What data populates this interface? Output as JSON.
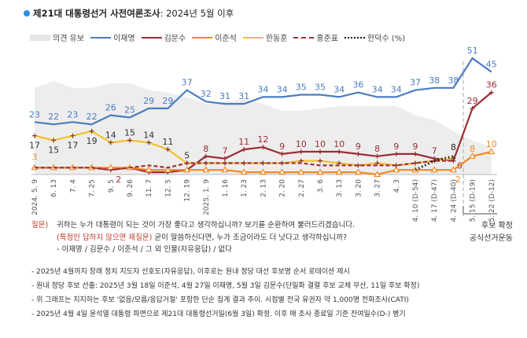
{
  "title": {
    "main": "제21대 대통령선거 사전여론조사",
    "sub": ": 2024년 5월 이후"
  },
  "legend": [
    {
      "label": "의견 유보",
      "key": "undecided"
    },
    {
      "label": "이재명",
      "key": "lee_jm"
    },
    {
      "label": "김문수",
      "key": "kim_ms"
    },
    {
      "label": "이준석",
      "key": "lee_js"
    },
    {
      "label": "한동훈",
      "key": "han_dh"
    },
    {
      "label": "홍준표",
      "key": "hong_jp"
    },
    {
      "label": "한덕수 (%)",
      "key": "han_ds"
    }
  ],
  "chart_data": {
    "type": "line",
    "title": "제21대 대통령선거 사전여론조사: 2024년 5월 이후",
    "ylabel": "%",
    "ylim": [
      0,
      55
    ],
    "grid": false,
    "categories": [
      "2024. 5. 9",
      "6. 13",
      "7. 4",
      "7. 25",
      "9. 5",
      "9. 26",
      "11. 7",
      "12. 5",
      "12. 19",
      "2025. 1. 9",
      "1. 16",
      "1. 23",
      "2. 13",
      "2. 20",
      "2. 27",
      "3. 6",
      "3. 13",
      "3. 20",
      "3. 27",
      "4. 3",
      "4. 10 (D-54)",
      "4. 17 (D-47)",
      "4. 24 (D-40)",
      "5. 15 (D-19)",
      "5. 22 (D-12)"
    ],
    "undecided": [
      38,
      41,
      38,
      38,
      40,
      40,
      37,
      36,
      34,
      31,
      32,
      33,
      31,
      28,
      28,
      29,
      30,
      30,
      30,
      30,
      26,
      24,
      19,
      15,
      12
    ],
    "series": [
      {
        "key": "lee_jm",
        "name": "이재명",
        "color": "#4a7cc0",
        "style": "solid",
        "values": [
          23,
          22,
          23,
          22,
          26,
          25,
          29,
          29,
          37,
          32,
          31,
          31,
          34,
          34,
          35,
          35,
          34,
          36,
          34,
          34,
          37,
          38,
          38,
          51,
          45
        ],
        "labeled": "all"
      },
      {
        "key": "kim_ms",
        "name": "김문수",
        "color": "#9b2c34",
        "style": "solid-plus",
        "values": [
          3,
          3,
          3,
          3,
          2,
          3,
          1,
          1,
          2,
          8,
          7,
          11,
          12,
          9,
          10,
          10,
          10,
          9,
          8,
          9,
          9,
          7,
          6,
          29,
          36
        ],
        "labeled": [
          9,
          10,
          11,
          12,
          13,
          14,
          15,
          16,
          17,
          18,
          19,
          20,
          21,
          22,
          23,
          24
        ]
      },
      {
        "key": "lee_js",
        "name": "이준석",
        "color": "#f08a24",
        "style": "triangle",
        "values": [
          3,
          3,
          3,
          3,
          3,
          3,
          2,
          2,
          2,
          2,
          2,
          1,
          1,
          1,
          1,
          1,
          1,
          1,
          0,
          2,
          2,
          2,
          2,
          8,
          10
        ],
        "labeled": [
          0,
          22,
          23,
          24
        ]
      },
      {
        "key": "han_dh",
        "name": "한동훈",
        "color": "#f5c02a",
        "style": "solid-plus",
        "values": [
          17,
          15,
          17,
          19,
          14,
          15,
          14,
          11,
          5,
          5,
          5,
          5,
          5,
          5,
          6,
          6,
          5,
          4,
          5,
          4,
          5,
          6,
          7,
          null,
          null
        ],
        "labeled": [
          0,
          1,
          2,
          3,
          4,
          5,
          6,
          7,
          8
        ]
      },
      {
        "key": "hong_jp",
        "name": "홍준표",
        "color": "#a0303a",
        "style": "dashed",
        "values": [
          3,
          3,
          3,
          3,
          2,
          3,
          4,
          3,
          5,
          5,
          5,
          5,
          5,
          5,
          5,
          4,
          4,
          4,
          4,
          4,
          5,
          6,
          6,
          null,
          null
        ],
        "labeled": [
          4
        ]
      },
      {
        "key": "han_ds",
        "name": "한덕수",
        "color": "#111111",
        "style": "dotted",
        "values": [
          null,
          null,
          null,
          null,
          null,
          null,
          null,
          null,
          null,
          null,
          null,
          null,
          null,
          null,
          null,
          null,
          null,
          null,
          null,
          null,
          2,
          6,
          8,
          null,
          null
        ],
        "labeled": [
          22
        ]
      }
    ],
    "annotation": {
      "line1": "후보 확정",
      "line2": "공식선거운동"
    }
  },
  "question": {
    "label": "질문)",
    "line1": "귀하는 누가 대통령이 되는 것이 가장 좋다고 생각하십니까? 보기를 순환하여 불러드리겠습니다.",
    "line2_red": "(특정인 답하지 않으면 재질문)",
    "line2": " 굳이 말씀하신다면, 누가 조금이라도 더 낫다고 생각하십니까?",
    "line3": "- 이재명 / 김문수 / 이준석 / 그 외 인물(자유응답) / 없다"
  },
  "notes": [
    "- 2025년 4월까지 장래 정치 지도자 선호도(자유응답), 이후로는 원내 정당 대선 후보명 순서 로테이션 제시",
    "- 원내 정당 후보 선출: 2025년 3월 18일 이준석, 4월 27일 이재명, 5월 3일 김문수(단일화 결렬 후보 교체 무산, 11일 후보 확정)",
    "- 위 그래프는 지지하는 후보 '없음/모름/응답거절' 포함한 단순 집계 결과 추이. 시점별 전국 유권자 약 1,000명 전화조사(CATI)",
    "- 2025년 4월 4일 윤석열 대통령 파면으로 제21대 대통령선거일(6월 3일) 확정. 이후 매 조사 종료일 기준 잔여일수(D-) 병기"
  ]
}
